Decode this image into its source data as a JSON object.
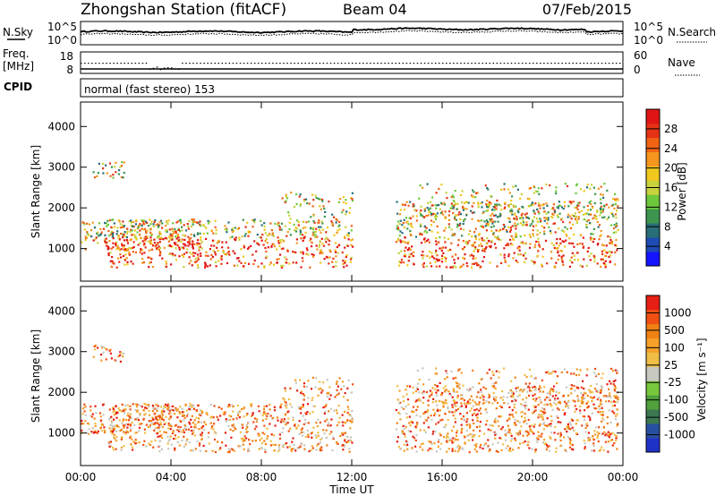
{
  "header": {
    "title": "Zhongshan Station (fitACF)",
    "beam": "Beam 04",
    "date": "07/Feb/2015"
  },
  "sky_panel": {
    "left_label": "N.Sky",
    "right_label": "N.Search",
    "left_ticks": [
      "10^5",
      "10^0"
    ],
    "right_ticks": [
      "10^5",
      "10^0"
    ]
  },
  "freq_panel": {
    "left_label_line1": "Freq.",
    "left_label_line2": "[MHz]",
    "right_label": "Nave",
    "left_ticks": [
      "18",
      "8"
    ],
    "right_ticks": [
      "60",
      "0"
    ]
  },
  "cpid": {
    "label": "CPID",
    "value": "normal (fast stereo) 153"
  },
  "chart_data": [
    {
      "type": "heatmap",
      "name_panel": "power",
      "ylabel": "Slant Range [km]",
      "yticks": [
        1000,
        2000,
        3000,
        4000
      ],
      "ylim": [
        200,
        4600
      ],
      "colorbar": {
        "label": "Power [dB]",
        "ticks": [
          "4",
          "8",
          "12",
          "16",
          "20",
          "24",
          "28"
        ],
        "colors": [
          "#1414ff",
          "#1e4bb4",
          "#286e78",
          "#3c9650",
          "#6ec83c",
          "#c8d23c",
          "#f0c81e",
          "#f5961e",
          "#f06414",
          "#e63214",
          "#e11414"
        ]
      }
    },
    {
      "type": "heatmap",
      "name_panel": "velocity",
      "ylabel": "Slant Range [km]",
      "yticks": [
        1000,
        2000,
        3000,
        4000
      ],
      "ylim": [
        200,
        4600
      ],
      "colorbar": {
        "label": "Velocity [m s⁻¹]",
        "ticks": [
          "1000",
          "500",
          "100",
          "25",
          "-25",
          "-100",
          "-500",
          "-1000"
        ],
        "colors": [
          "#1e32c8",
          "#2850a0",
          "#3c7850",
          "#50a03c",
          "#78c83c",
          "#c8c8c0",
          "#f0be46",
          "#f5a028",
          "#f08214",
          "#f05014",
          "#e61e14"
        ]
      }
    }
  ],
  "x_axis": {
    "label": "Time UT",
    "ticks": [
      "00:00",
      "04:00",
      "08:00",
      "12:00",
      "16:00",
      "20:00",
      "00:00"
    ]
  }
}
